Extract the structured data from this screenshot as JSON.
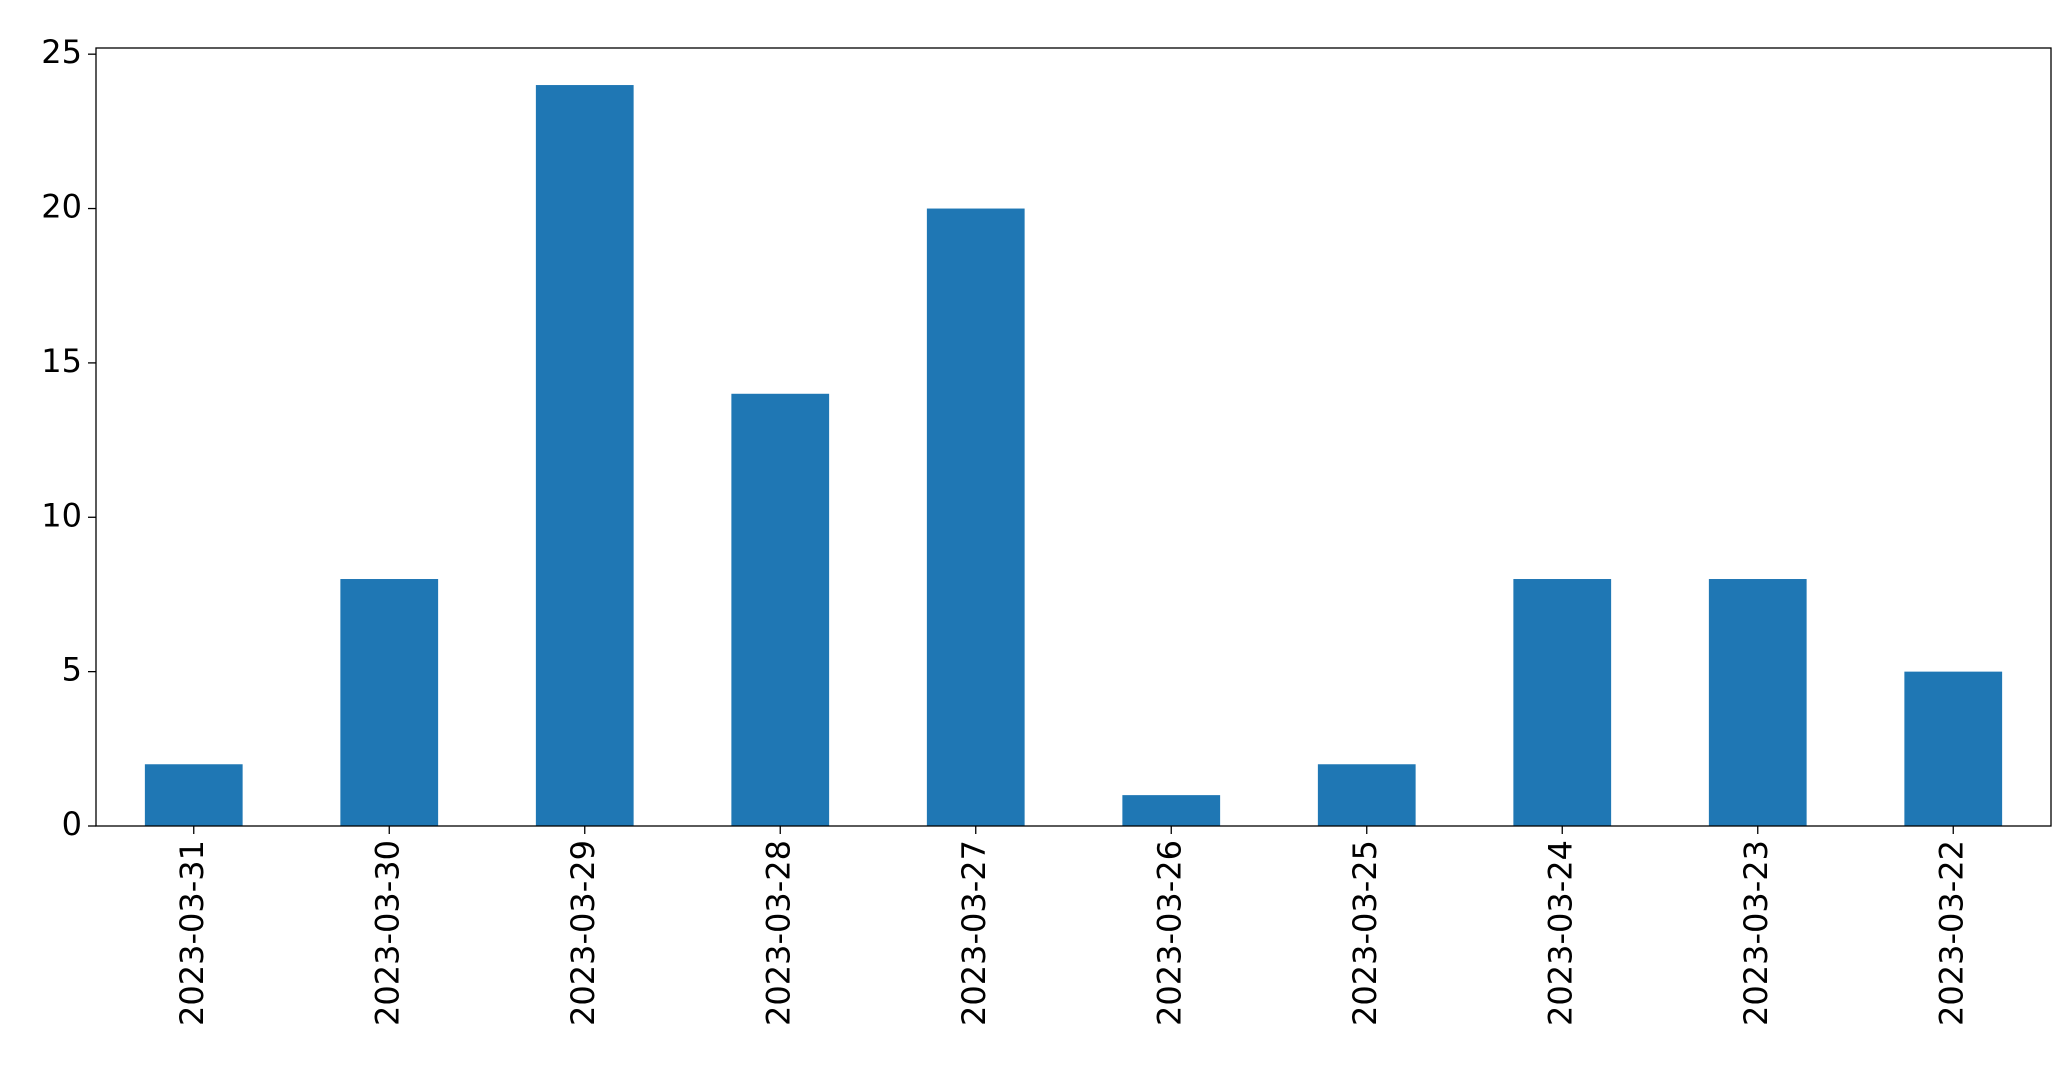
{
  "chart_data": {
    "type": "bar",
    "categories": [
      "2023-03-31",
      "2023-03-30",
      "2023-03-29",
      "2023-03-28",
      "2023-03-27",
      "2023-03-26",
      "2023-03-25",
      "2023-03-24",
      "2023-03-23",
      "2023-03-22"
    ],
    "values": [
      2,
      8,
      24,
      14,
      20,
      1,
      2,
      8,
      8,
      5
    ],
    "color": "#1f77b4",
    "ylim": [
      0,
      25.2
    ],
    "yticks": [
      0,
      5,
      10,
      15,
      20,
      25
    ],
    "grid": false
  }
}
